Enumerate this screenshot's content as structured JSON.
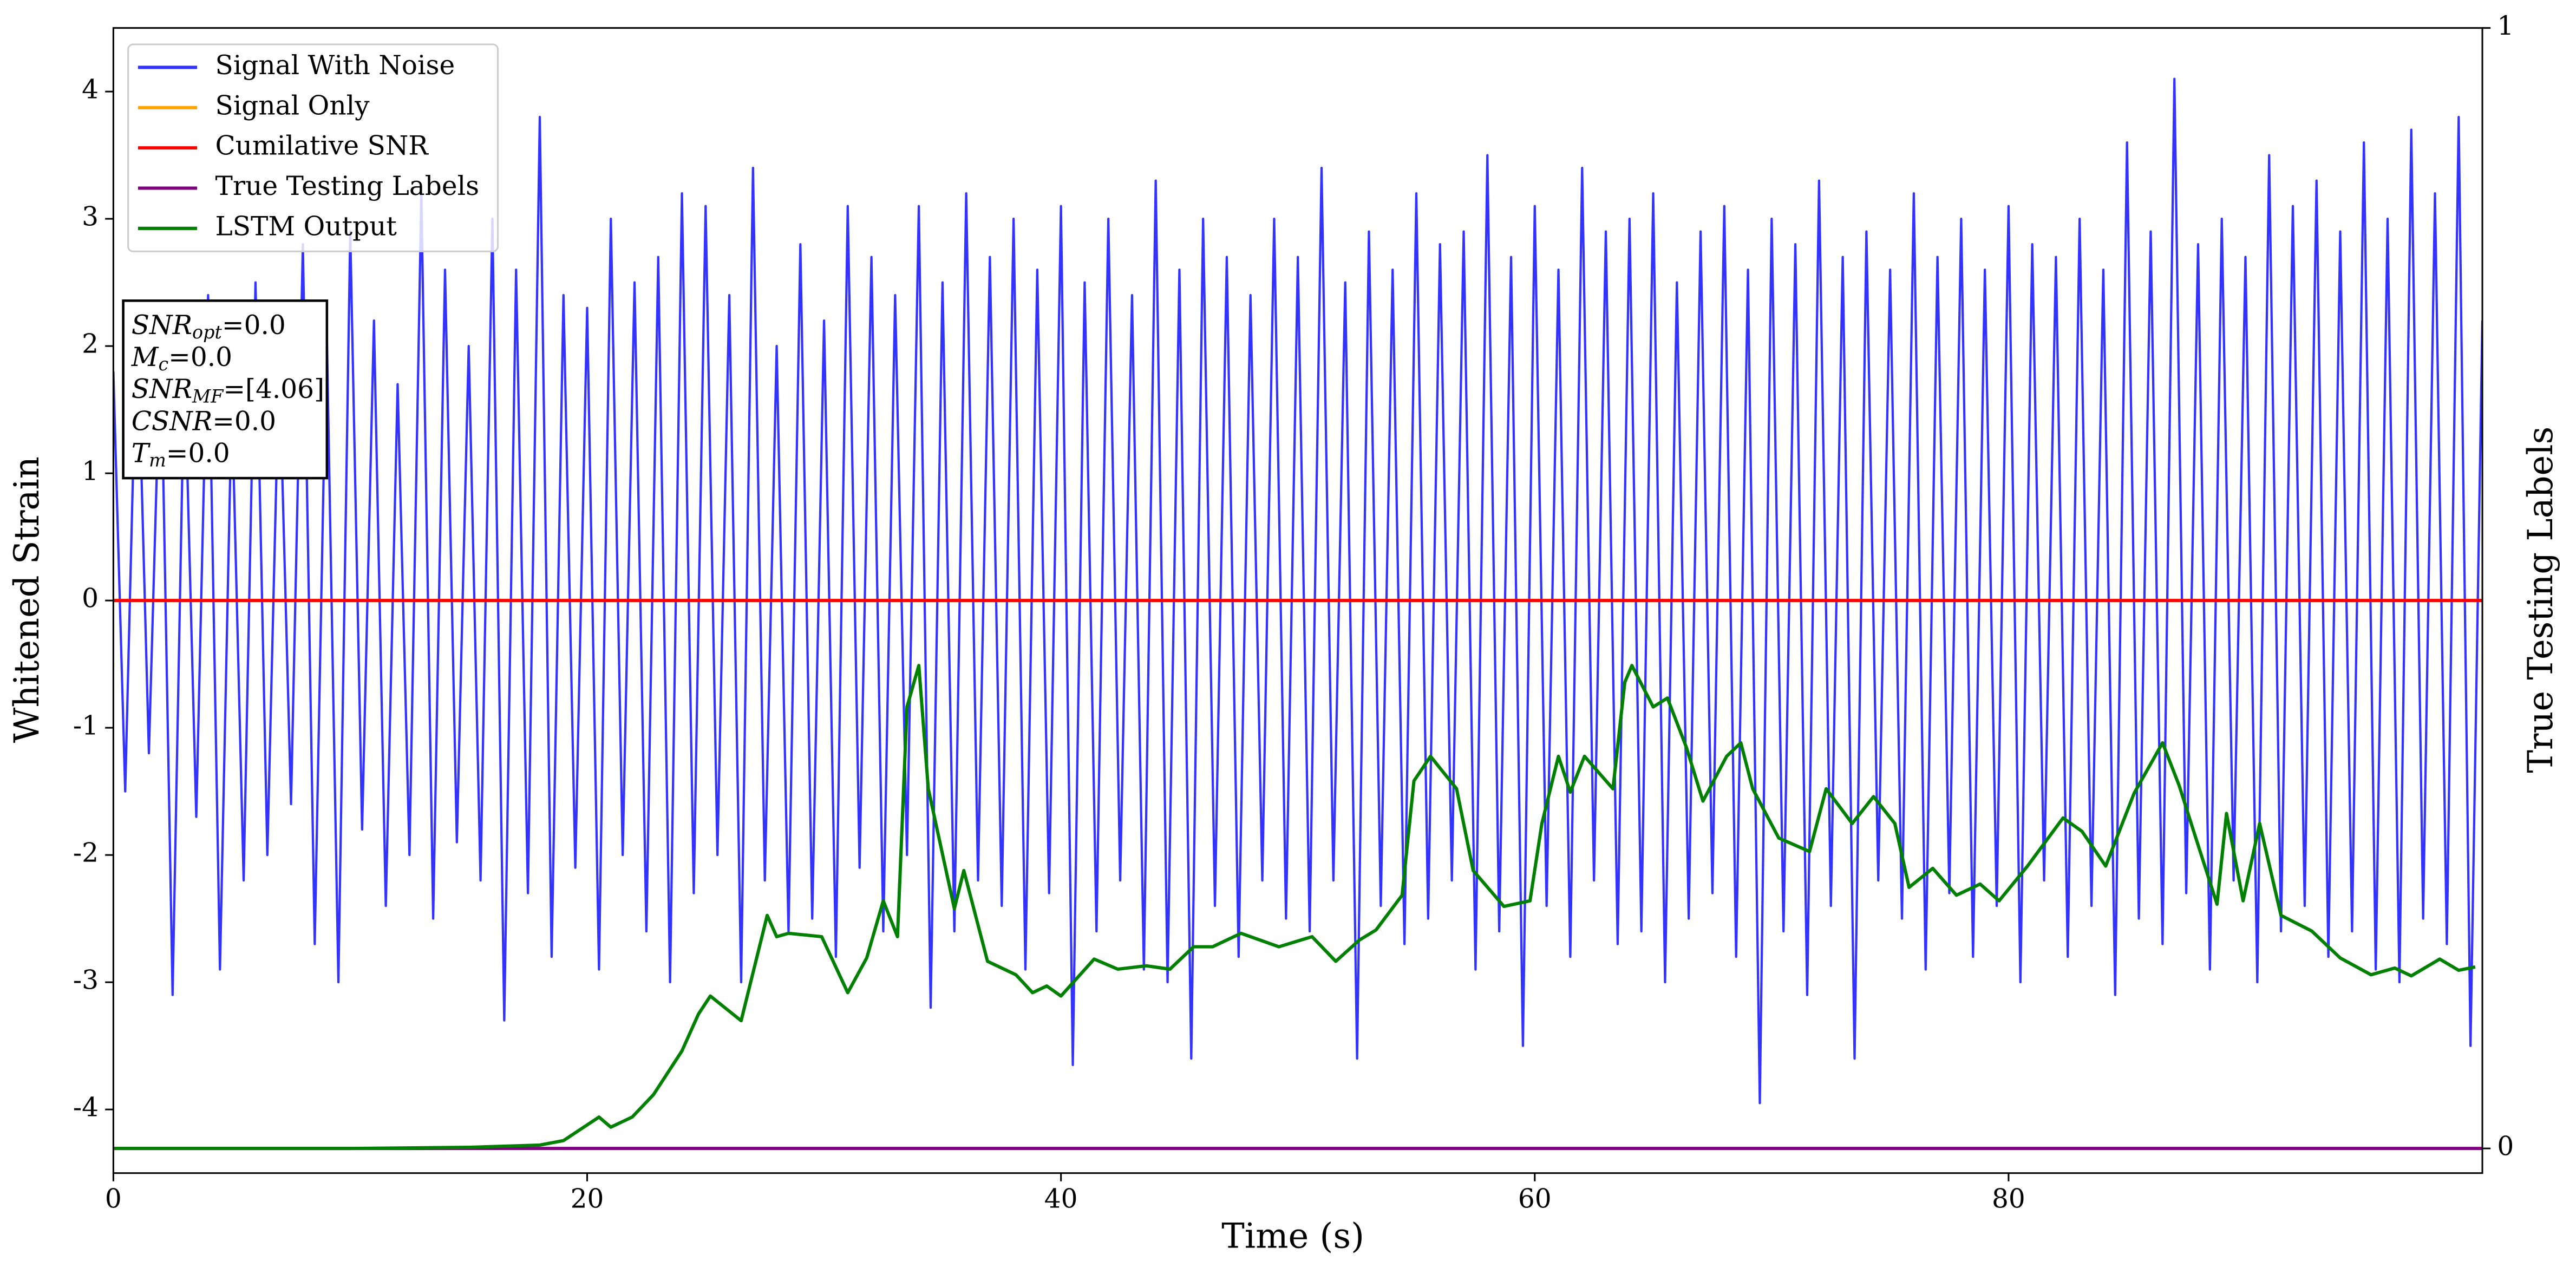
{
  "chart_data": {
    "type": "line",
    "xlabel": "Time (s)",
    "ylabel": "Whitened Strain",
    "y2label": "True Testing Labels",
    "xlim": [
      0,
      100
    ],
    "ylim": [
      -4.5,
      4.5
    ],
    "y2lim": [
      -0.022,
      1
    ],
    "xticks": [
      0,
      20,
      40,
      60,
      80
    ],
    "yticks": [
      -4,
      -3,
      -2,
      -1,
      0,
      1,
      2,
      3,
      4
    ],
    "y2ticks": [
      0,
      1
    ],
    "grid": false,
    "legend": "upper left",
    "annotations": [
      {
        "symbol": "SNR",
        "subscript": "opt",
        "text": "=0.0"
      },
      {
        "symbol": "M",
        "subscript": "c",
        "text": "=0.0"
      },
      {
        "symbol": "SNR",
        "subscript": "MF",
        "text": "=[4.06]"
      },
      {
        "symbol": "CSNR",
        "subscript": null,
        "text": "=0.0"
      },
      {
        "symbol": "T",
        "subscript": "m",
        "text": "=0.0"
      }
    ],
    "series": [
      {
        "name": "Signal With Noise",
        "color": "#3333ff",
        "x": [
          0,
          0.5,
          1,
          1.5,
          2,
          2.5,
          3,
          3.5,
          4,
          4.5,
          5,
          5.5,
          6,
          6.5,
          7,
          7.5,
          8,
          8.5,
          9,
          9.5,
          10,
          10.5,
          11,
          11.5,
          12,
          12.5,
          13,
          13.5,
          14,
          14.5,
          15,
          15.5,
          16,
          16.5,
          17,
          17.5,
          18,
          18.5,
          19,
          19.5,
          20,
          20.5,
          21,
          21.5,
          22,
          22.5,
          23,
          23.5,
          24,
          24.5,
          25,
          25.5,
          26,
          26.5,
          27,
          27.5,
          28,
          28.5,
          29,
          29.5,
          30,
          30.5,
          31,
          31.5,
          32,
          32.5,
          33,
          33.5,
          34,
          34.5,
          35,
          35.5,
          36,
          36.5,
          37,
          37.5,
          38,
          38.5,
          39,
          39.5,
          40,
          40.5,
          41,
          41.5,
          42,
          42.5,
          43,
          43.5,
          44,
          44.5,
          45,
          45.5,
          46,
          46.5,
          47,
          47.5,
          48,
          48.5,
          49,
          49.5,
          50,
          50.5,
          51,
          51.5,
          52,
          52.5,
          53,
          53.5,
          54,
          54.5,
          55,
          55.5,
          56,
          56.5,
          57,
          57.5,
          58,
          58.5,
          59,
          59.5,
          60,
          60.5,
          61,
          61.5,
          62,
          62.5,
          63,
          63.5,
          64,
          64.5,
          65,
          65.5,
          66,
          66.5,
          67,
          67.5,
          68,
          68.5,
          69,
          69.5,
          70,
          70.5,
          71,
          71.5,
          72,
          72.5,
          73,
          73.5,
          74,
          74.5,
          75,
          75.5,
          76,
          76.5,
          77,
          77.5,
          78,
          78.5,
          79,
          79.5,
          80,
          80.5,
          81,
          81.5,
          82,
          82.5,
          83,
          83.5,
          84,
          84.5,
          85,
          85.5,
          86,
          86.5,
          87,
          87.5,
          88,
          88.5,
          89,
          89.5,
          90,
          90.5,
          91,
          91.5,
          92,
          92.5,
          93,
          93.5,
          94,
          94.5,
          95,
          95.5,
          96,
          96.5,
          97,
          97.5,
          98,
          98.5,
          99,
          99.5,
          100
        ],
        "values": [
          1.8,
          -1.5,
          2.3,
          -1.2,
          2.1,
          -3.1,
          1.9,
          -1.7,
          2.4,
          -2.9,
          1.6,
          -2.2,
          2.5,
          -2.0,
          1.9,
          -1.6,
          2.8,
          -2.7,
          2.2,
          -3.0,
          2.9,
          -1.8,
          2.2,
          -2.4,
          1.7,
          -2.0,
          3.2,
          -2.5,
          2.6,
          -1.9,
          2.0,
          -2.2,
          3.0,
          -3.3,
          2.6,
          -2.3,
          3.8,
          -2.8,
          2.4,
          -2.1,
          2.3,
          -2.9,
          3.0,
          -2.0,
          2.5,
          -2.6,
          2.7,
          -3.0,
          3.2,
          -2.3,
          3.1,
          -2.0,
          2.4,
          -3.0,
          3.4,
          -2.2,
          2.0,
          -2.6,
          2.8,
          -2.5,
          2.2,
          -2.8,
          3.1,
          -2.1,
          2.7,
          -2.6,
          2.4,
          -2.0,
          3.1,
          -3.2,
          2.5,
          -2.6,
          3.2,
          -2.2,
          2.7,
          -2.4,
          3.0,
          -2.9,
          2.6,
          -2.3,
          3.1,
          -3.65,
          2.5,
          -2.6,
          3.0,
          -2.2,
          2.4,
          -2.9,
          3.3,
          -3.0,
          2.6,
          -3.6,
          3.0,
          -2.4,
          2.7,
          -2.8,
          2.4,
          -2.2,
          3.0,
          -2.5,
          2.7,
          -2.6,
          3.4,
          -2.2,
          2.5,
          -3.6,
          2.9,
          -2.4,
          2.6,
          -2.7,
          3.2,
          -2.5,
          2.8,
          -2.2,
          2.9,
          -2.9,
          3.5,
          -2.6,
          2.7,
          -3.5,
          3.1,
          -2.4,
          2.6,
          -2.8,
          3.4,
          -2.2,
          2.9,
          -2.7,
          3.0,
          -2.6,
          3.2,
          -3.0,
          2.5,
          -2.5,
          2.9,
          -2.3,
          3.1,
          -2.8,
          2.6,
          -3.95,
          3.0,
          -2.6,
          2.8,
          -3.1,
          3.3,
          -2.4,
          2.7,
          -3.6,
          2.9,
          -2.2,
          2.6,
          -2.5,
          3.2,
          -2.9,
          2.7,
          -2.3,
          3.0,
          -2.8,
          2.6,
          -2.4,
          3.1,
          -3.0,
          2.8,
          -2.2,
          2.7,
          -2.8,
          3.0,
          -2.4,
          2.6,
          -3.1,
          3.6,
          -2.5,
          2.9,
          -2.7,
          4.1,
          -2.3,
          2.8,
          -2.9,
          3.0,
          -2.2,
          2.7,
          -3.0,
          3.5,
          -2.6,
          3.1,
          -2.4,
          3.3,
          -2.8,
          2.9,
          -2.6,
          3.6,
          -2.9,
          3.0,
          -3.0,
          3.7,
          -2.5,
          3.2,
          -2.7,
          3.8,
          -3.5,
          2.2
        ]
      },
      {
        "name": "Signal Only",
        "color": "#ffa500",
        "x": [
          0,
          100
        ],
        "values": [
          0,
          0
        ]
      },
      {
        "name": "Cumilative SNR",
        "color": "#ff0000",
        "x": [
          0,
          100
        ],
        "values": [
          0,
          0
        ]
      },
      {
        "name": "True Testing Labels",
        "color": "#800080",
        "axis": "y2",
        "x": [
          0,
          100
        ],
        "values": [
          0,
          0
        ]
      },
      {
        "name": "LSTM Output",
        "color": "#008000",
        "axis": "y2",
        "x": [
          0,
          10,
          15,
          18.0,
          19.0,
          20.5,
          21.0,
          21.9,
          22.8,
          24.0,
          24.7,
          25.2,
          26.5,
          27.6,
          28.0,
          28.5,
          29.9,
          31.0,
          31.8,
          32.5,
          33.1,
          33.5,
          34.0,
          34.4,
          35.5,
          35.9,
          36.9,
          38.1,
          38.8,
          39.4,
          40.0,
          41.4,
          42.4,
          43.6,
          44.6,
          45.6,
          46.4,
          47.6,
          49.2,
          50.6,
          51.6,
          52.6,
          53.3,
          54.4,
          54.9,
          55.6,
          56.7,
          57.4,
          58.7,
          59.8,
          60.3,
          61.0,
          61.5,
          62.1,
          63.3,
          63.8,
          64.1,
          65.0,
          65.6,
          66.4,
          67.1,
          68.1,
          68.7,
          69.2,
          70.3,
          71.6,
          72.3,
          73.4,
          74.3,
          75.2,
          75.8,
          76.8,
          77.8,
          78.8,
          79.6,
          80.8,
          82.3,
          83.1,
          84.1,
          85.3,
          86.5,
          87.2,
          87.8,
          88.8,
          89.2,
          89.9,
          90.6,
          91.5,
          92.8,
          94.0,
          95.3,
          96.3,
          97.0,
          98.2,
          99.0,
          99.7
        ],
        "values": [
          0,
          0,
          0.001,
          0.003,
          0.007,
          0.028,
          0.019,
          0.028,
          0.048,
          0.087,
          0.12,
          0.136,
          0.114,
          0.208,
          0.189,
          0.192,
          0.189,
          0.139,
          0.17,
          0.221,
          0.189,
          0.394,
          0.431,
          0.321,
          0.214,
          0.248,
          0.167,
          0.155,
          0.139,
          0.145,
          0.136,
          0.169,
          0.16,
          0.163,
          0.16,
          0.18,
          0.18,
          0.192,
          0.18,
          0.189,
          0.167,
          0.186,
          0.195,
          0.226,
          0.328,
          0.35,
          0.321,
          0.248,
          0.216,
          0.221,
          0.29,
          0.35,
          0.318,
          0.35,
          0.321,
          0.416,
          0.431,
          0.394,
          0.402,
          0.358,
          0.31,
          0.35,
          0.362,
          0.321,
          0.277,
          0.265,
          0.321,
          0.29,
          0.314,
          0.29,
          0.233,
          0.25,
          0.226,
          0.236,
          0.221,
          0.252,
          0.295,
          0.283,
          0.252,
          0.317,
          0.362,
          0.324,
          0.284,
          0.218,
          0.299,
          0.221,
          0.29,
          0.208,
          0.194,
          0.17,
          0.155,
          0.161,
          0.154,
          0.169,
          0.159,
          0.162
        ]
      }
    ]
  }
}
